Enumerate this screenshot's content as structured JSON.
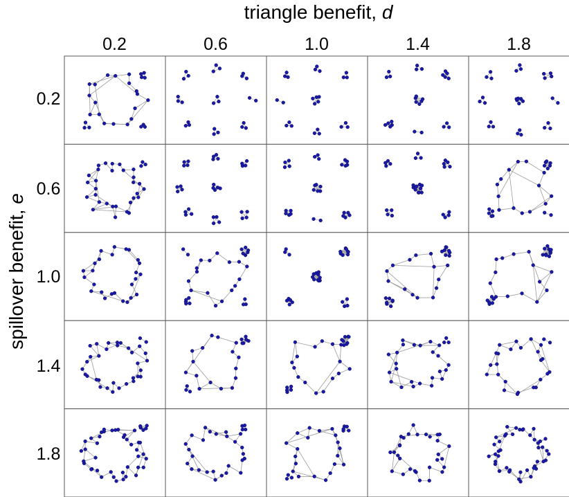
{
  "figure": {
    "x_title": "triangle benefit, ",
    "x_symbol": "d",
    "y_title": "spillover benefit, ",
    "y_symbol": "e"
  },
  "columns": [
    "0.2",
    "0.6",
    "1.0",
    "1.4",
    "1.8"
  ],
  "rows": [
    "0.2",
    "0.6",
    "1.0",
    "1.4",
    "1.8"
  ],
  "colors": {
    "node": "#1a1aa8",
    "node_edge": "#0a0a60",
    "edge": "#9a9a9a",
    "frame": "#555555"
  },
  "panels": [
    [
      {
        "cluster_sizes": [
          18,
          4,
          3,
          3
        ]
      },
      {
        "cluster_sizes": [
          3,
          3,
          3,
          3,
          3,
          3,
          3,
          3,
          2
        ]
      },
      {
        "cluster_sizes": [
          5,
          3,
          3,
          3,
          3,
          3,
          3,
          2
        ]
      },
      {
        "cluster_sizes": [
          6,
          5,
          5,
          3,
          3,
          3,
          2
        ]
      },
      {
        "cluster_sizes": [
          6,
          4,
          3,
          3,
          3,
          3,
          3,
          3,
          2
        ]
      }
    ],
    [
      {
        "cluster_sizes": [
          30,
          3
        ]
      },
      {
        "cluster_sizes": [
          5,
          4,
          4,
          4,
          4,
          4,
          4,
          4
        ]
      },
      {
        "cluster_sizes": [
          6,
          5,
          5,
          5,
          4,
          3,
          2
        ]
      },
      {
        "cluster_sizes": [
          10,
          5,
          4,
          4,
          4,
          3
        ]
      },
      {
        "cluster_sizes": [
          14,
          6,
          5,
          2
        ]
      }
    ],
    [
      {
        "cluster_sizes": [
          26
        ]
      },
      {
        "cluster_sizes": [
          16,
          6,
          5,
          3,
          2
        ]
      },
      {
        "cluster_sizes": [
          10,
          8,
          5,
          4,
          3
        ]
      },
      {
        "cluster_sizes": [
          14,
          8,
          7
        ]
      },
      {
        "cluster_sizes": [
          14,
          10,
          6
        ]
      }
    ],
    [
      {
        "cluster_sizes": [
          32,
          2
        ]
      },
      {
        "cluster_sizes": [
          16,
          6,
          3
        ]
      },
      {
        "cluster_sizes": [
          16,
          8,
          5
        ]
      },
      {
        "cluster_sizes": [
          24,
          3
        ]
      },
      {
        "cluster_sizes": [
          24,
          2
        ]
      }
    ],
    [
      {
        "cluster_sizes": [
          40,
          5
        ]
      },
      {
        "cluster_sizes": [
          26,
          4
        ]
      },
      {
        "cluster_sizes": [
          20,
          5,
          3
        ]
      },
      {
        "cluster_sizes": [
          30
        ]
      },
      {
        "cluster_sizes": [
          44
        ]
      }
    ]
  ]
}
